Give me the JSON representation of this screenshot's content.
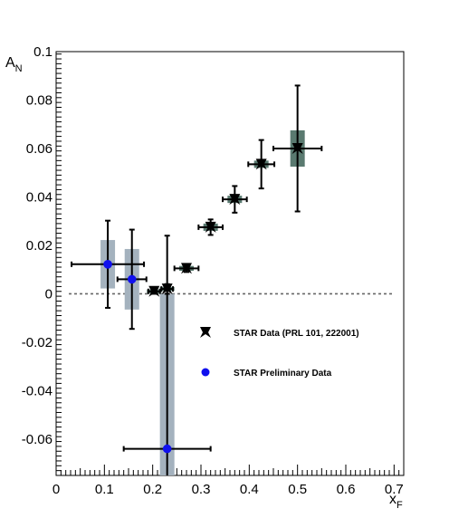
{
  "chart_data": {
    "type": "scatter",
    "xlabel": "x",
    "xlabel_sub": "F",
    "ylabel": "A",
    "ylabel_sub": "N",
    "xlim": [
      0,
      0.72
    ],
    "ylim": [
      -0.075,
      0.1
    ],
    "xticks": [
      0,
      0.1,
      0.2,
      0.3,
      0.4,
      0.5,
      0.6,
      0.7
    ],
    "xtick_labels": [
      "0",
      "0.1",
      "0.2",
      "0.3",
      "0.4",
      "0.5",
      "0.6",
      "0.7"
    ],
    "yticks": [
      0.1,
      0.08,
      0.06,
      0.04,
      0.02,
      0,
      -0.02,
      -0.04,
      -0.06
    ],
    "ytick_labels": [
      "0.1",
      "0.08",
      "0.06",
      "0.04",
      "0.02",
      "0",
      "-0.02",
      "-0.04",
      "-0.06"
    ],
    "reference_line_y": 0,
    "grid": false,
    "legend_position": "center-right",
    "series": [
      {
        "name": "STAR Data (PRL 101, 222001)",
        "marker": "star",
        "color": "#000000",
        "box_color": "#5a7a70",
        "points": [
          {
            "x": 0.203,
            "y": 0.001,
            "xerr": 0.012,
            "yerr": 0.001,
            "sys": 0.0008
          },
          {
            "x": 0.23,
            "y": 0.002,
            "xerr": 0.012,
            "yerr": 0.002,
            "sys": 0.0008
          },
          {
            "x": 0.27,
            "y": 0.0105,
            "xerr": 0.025,
            "yerr": 0.0015,
            "sys": 0.001
          },
          {
            "x": 0.32,
            "y": 0.0275,
            "xerr": 0.025,
            "yerr": 0.0032,
            "sys": 0.0015
          },
          {
            "x": 0.37,
            "y": 0.039,
            "xerr": 0.025,
            "yerr": 0.0055,
            "sys": 0.0015
          },
          {
            "x": 0.425,
            "y": 0.0535,
            "xerr": 0.027,
            "yerr": 0.01,
            "sys": 0.0015
          },
          {
            "x": 0.5,
            "y": 0.06,
            "xerr": 0.05,
            "yerr": 0.026,
            "sys": 0.0075
          }
        ]
      },
      {
        "name": "STAR Preliminary Data",
        "marker": "circle",
        "color": "#1010ee",
        "box_color": "#a4b2be",
        "points": [
          {
            "x": 0.107,
            "y": 0.0122,
            "xerr": 0.075,
            "yerr": 0.018,
            "sys": 0.01
          },
          {
            "x": 0.157,
            "y": 0.006,
            "xerr": 0.03,
            "yerr": 0.0205,
            "sys": 0.0125
          },
          {
            "x": 0.23,
            "y": -0.064,
            "xerr": 0.09,
            "yerr": 0.088,
            "sys": 0.064
          }
        ]
      }
    ]
  }
}
